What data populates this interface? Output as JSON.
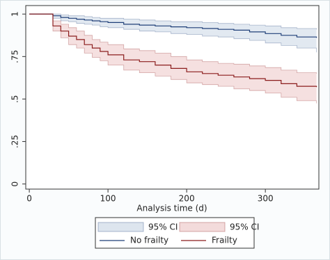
{
  "chart_data": {
    "type": "step",
    "x_label": "Analysis time (d)",
    "x": [
      0,
      20,
      30,
      40,
      50,
      60,
      70,
      80,
      90,
      100,
      120,
      140,
      160,
      180,
      200,
      220,
      240,
      260,
      280,
      300,
      320,
      340,
      365
    ],
    "xlim": [
      -4.5,
      368
    ],
    "xticks": [
      0,
      100,
      200,
      300
    ],
    "ylim": [
      -0.03,
      1.05
    ],
    "yticks": [
      0,
      {
        "value": 0.25,
        "label": ".25"
      },
      {
        "value": 0.5,
        "label": ".5"
      },
      {
        "value": 0.75,
        "label": ".75"
      },
      1
    ],
    "grid": false,
    "series": [
      {
        "name": "No frailty",
        "color": "#1f3f78",
        "values": [
          1,
          1,
          0.99,
          0.98,
          0.975,
          0.97,
          0.965,
          0.96,
          0.955,
          0.95,
          0.94,
          0.935,
          0.93,
          0.925,
          0.92,
          0.915,
          0.91,
          0.905,
          0.895,
          0.885,
          0.875,
          0.865,
          0.86
        ],
        "ci": {
          "name": "95% CI",
          "color": "#dde5ee",
          "upper": [
            1,
            1,
            1,
            0.995,
            0.99,
            0.99,
            0.985,
            0.98,
            0.975,
            0.975,
            0.97,
            0.965,
            0.96,
            0.955,
            0.955,
            0.95,
            0.945,
            0.94,
            0.935,
            0.93,
            0.92,
            0.915,
            0.91
          ],
          "lower": [
            1,
            1,
            0.975,
            0.96,
            0.955,
            0.945,
            0.94,
            0.935,
            0.925,
            0.92,
            0.91,
            0.9,
            0.895,
            0.885,
            0.88,
            0.87,
            0.865,
            0.855,
            0.845,
            0.83,
            0.815,
            0.8,
            0.775
          ]
        }
      },
      {
        "name": "Frailty",
        "color": "#8b1c1c",
        "values": [
          1,
          1,
          0.93,
          0.9,
          0.87,
          0.85,
          0.82,
          0.8,
          0.78,
          0.76,
          0.73,
          0.72,
          0.7,
          0.68,
          0.66,
          0.65,
          0.64,
          0.63,
          0.62,
          0.61,
          0.59,
          0.575,
          0.57
        ],
        "ci": {
          "name": "95% CI",
          "color": "#f3dbdb",
          "upper": [
            1,
            1,
            0.96,
            0.94,
            0.92,
            0.9,
            0.875,
            0.85,
            0.835,
            0.82,
            0.795,
            0.785,
            0.77,
            0.75,
            0.73,
            0.72,
            0.71,
            0.705,
            0.695,
            0.685,
            0.67,
            0.655,
            0.65
          ],
          "lower": [
            1,
            1,
            0.9,
            0.86,
            0.82,
            0.8,
            0.77,
            0.745,
            0.725,
            0.7,
            0.67,
            0.655,
            0.635,
            0.615,
            0.595,
            0.585,
            0.575,
            0.56,
            0.55,
            0.535,
            0.51,
            0.49,
            0.475
          ]
        }
      }
    ]
  }
}
